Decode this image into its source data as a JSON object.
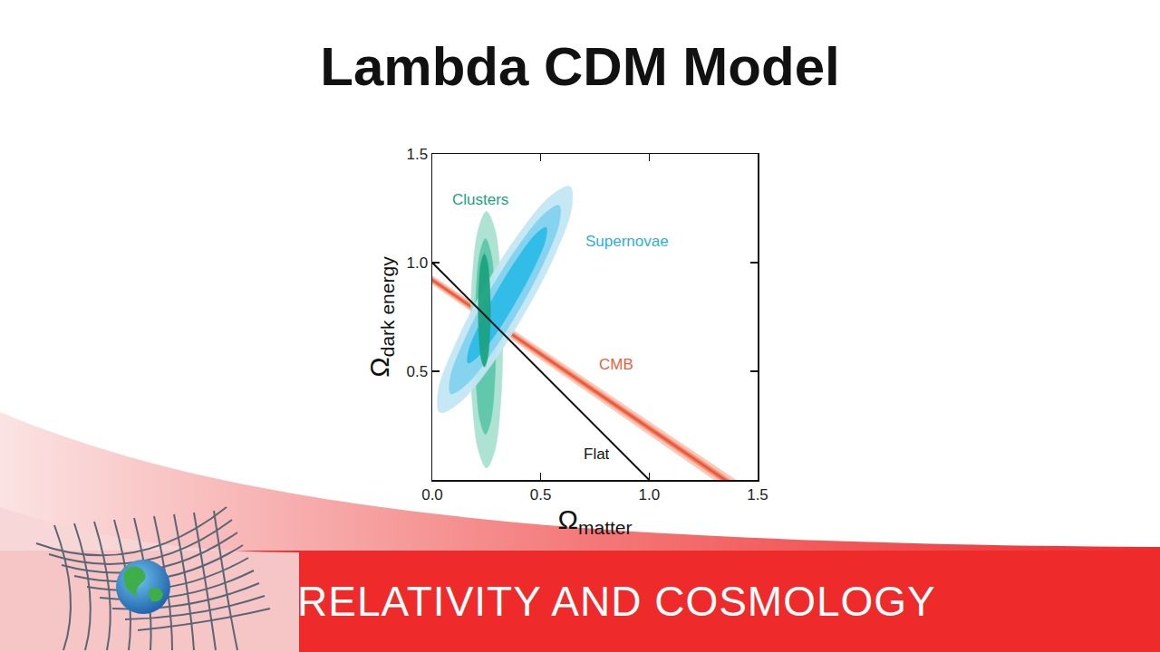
{
  "chart_data": {
    "type": "region",
    "title": "Lambda CDM Model",
    "footer": "RELATIVITY AND COSMOLOGY",
    "xlabel": {
      "text": "Ω",
      "subscript": "matter"
    },
    "ylabel": {
      "text": "Ω",
      "subscript": "dark energy"
    },
    "xlim": [
      0,
      1.5
    ],
    "xticks": [
      {
        "value": 0,
        "label": "0.0"
      },
      0.5,
      {
        "value": 1,
        "label": "1.0"
      },
      1.5
    ],
    "ylim": [
      0,
      1.5
    ],
    "yticks": [
      0.5,
      {
        "value": 1,
        "label": "1.0"
      },
      1.5
    ],
    "grid": false,
    "series": [
      {
        "name": "CMB",
        "type": "band",
        "color": "#e8603f",
        "label_at": [
          0.85,
          0.53
        ],
        "contours": [
          {
            "color": "#f9c8b8",
            "x": [
              0,
              1.4,
              1.3,
              0
            ],
            "y": [
              0.94,
              0,
              0,
              0.9
            ]
          },
          {
            "color": "#f4957a",
            "x": [
              0,
              1.375,
              1.325,
              0
            ],
            "y": [
              0.932,
              0,
              0,
              0.908
            ]
          },
          {
            "color": "#ea5a3c",
            "x": [
              0,
              1.36,
              1.34,
              0
            ],
            "y": [
              0.925,
              0,
              0,
              0.915
            ]
          }
        ]
      },
      {
        "name": "Clusters",
        "type": "region",
        "color": "#1aa37f",
        "label_at": [
          0.22,
          1.29
        ],
        "contours": [
          {
            "color": "#a8e0d0",
            "x": [
              0.25,
              0.213,
              0.185,
              0.175,
              0.185,
              0.213,
              0.25,
              0.288,
              0.315,
              0.325,
              0.315,
              0.288
            ],
            "y": [
              1.235,
              1.156,
              0.94,
              0.645,
              0.35,
              0.134,
              0.055,
              0.134,
              0.35,
              0.645,
              0.94,
              1.156
            ]
          },
          {
            "color": "#5cc6a8",
            "x": [
              0.245,
              0.221,
              0.203,
              0.197,
              0.203,
              0.221,
              0.245,
              0.269,
              0.287,
              0.293,
              0.287,
              0.269
            ],
            "y": [
              1.11,
              1.05,
              0.885,
              0.66,
              0.435,
              0.27,
              0.21,
              0.27,
              0.435,
              0.66,
              0.885,
              1.05
            ]
          }
        ]
      },
      {
        "name": "Supernovae",
        "type": "region",
        "color": "#2bb0e0",
        "label_at": [
          0.9,
          1.1
        ],
        "contours": [
          {
            "color": "#c2e7f4",
            "x": [
              0.635,
              0.547,
              0.403,
              0.24,
              0.103,
              0.027,
              0.035,
              0.123,
              0.268,
              0.43,
              0.568,
              0.643
            ],
            "y": [
              1.35,
              1.308,
              1.138,
              0.885,
              0.618,
              0.408,
              0.31,
              0.353,
              0.522,
              0.775,
              1.042,
              1.253
            ]
          },
          {
            "color": "#80d2ee",
            "x": [
              0.585,
              0.517,
              0.4,
              0.266,
              0.15,
              0.084,
              0.085,
              0.153,
              0.27,
              0.404,
              0.52,
              0.586
            ],
            "y": [
              1.263,
              1.225,
              1.081,
              0.87,
              0.648,
              0.475,
              0.397,
              0.435,
              0.579,
              0.79,
              1.012,
              1.185
            ]
          },
          {
            "color": "#2cbbe8",
            "x": [
              0.525,
              0.479,
              0.398,
              0.302,
              0.218,
              0.167,
              0.165,
              0.211,
              0.293,
              0.388,
              0.473,
              0.523
            ],
            "y": [
              1.162,
              1.133,
              1.028,
              0.875,
              0.716,
              0.593,
              0.538,
              0.568,
              0.672,
              0.825,
              0.984,
              1.108
            ]
          }
        ]
      },
      {
        "name": "Clusters",
        "type": "region",
        "color": "#1aa37f",
        "contours": [
          {
            "color": "#1aa37f",
            "x": [
              0.24,
              0.226,
              0.216,
              0.212,
              0.216,
              0.226,
              0.24,
              0.254,
              0.264,
              0.268,
              0.264,
              0.254
            ],
            "y": [
              1.04,
              1.005,
              0.91,
              0.78,
              0.65,
              0.555,
              0.52,
              0.555,
              0.65,
              0.78,
              0.91,
              1.005
            ]
          }
        ]
      },
      {
        "name": "Flat",
        "type": "line",
        "color": "#111111",
        "x": [
          0,
          1
        ],
        "y": [
          1,
          0
        ],
        "label_at": [
          0.76,
          0.12
        ]
      }
    ]
  }
}
